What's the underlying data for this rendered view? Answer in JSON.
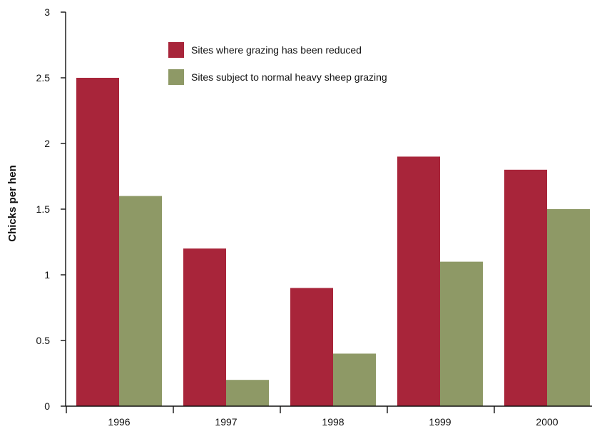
{
  "colors": {
    "series_reduced": "#A8253A",
    "series_normal": "#8E9966",
    "axis": "#111111"
  },
  "chart_data": {
    "type": "bar",
    "title": "",
    "xlabel": "",
    "ylabel": "Chicks per hen",
    "ylim": [
      0,
      3
    ],
    "yticks": [
      0,
      0.5,
      1,
      1.5,
      2,
      2.5,
      3
    ],
    "ytick_labels": [
      "0",
      "0.5",
      "1",
      "1.5",
      "2",
      "2.5",
      "3"
    ],
    "categories": [
      "1996",
      "1997",
      "1998",
      "1999",
      "2000"
    ],
    "series": [
      {
        "name": "Sites where grazing has been reduced",
        "values": [
          2.5,
          1.2,
          0.9,
          1.9,
          1.8
        ],
        "color": "#A8253A"
      },
      {
        "name": "Sites subject to normal heavy sheep grazing",
        "values": [
          1.6,
          0.2,
          0.4,
          1.1,
          1.5
        ],
        "color": "#8E9966"
      }
    ],
    "grid": false,
    "legend_position": "top-center"
  }
}
